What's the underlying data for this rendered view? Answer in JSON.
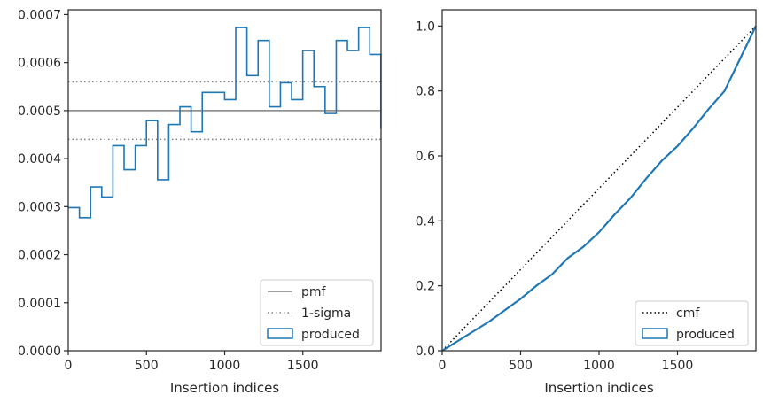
{
  "chart_data": [
    {
      "type": "step",
      "xlabel": "Insertion indices",
      "ylabel": "",
      "xlim": [
        0,
        2000
      ],
      "ylim": [
        0,
        0.00071
      ],
      "xticks": [
        0,
        500,
        1000,
        1500
      ],
      "xtick_labels": [
        "0",
        "500",
        "1000",
        "1500"
      ],
      "yticks": [
        0,
        0.0001,
        0.0002,
        0.0003,
        0.0004,
        0.0005,
        0.0006,
        0.0007
      ],
      "ytick_labels": [
        "0.0000",
        "0.0001",
        "0.0002",
        "0.0003",
        "0.0004",
        "0.0005",
        "0.0006",
        "0.0007"
      ],
      "bin_width": 71.4,
      "pmf": 0.0005,
      "sigma_band": [
        0.00044,
        0.00056
      ],
      "values": [
        0.000298,
        0.000277,
        0.000341,
        0.00032,
        0.000427,
        0.000377,
        0.000427,
        0.000479,
        0.000356,
        0.000471,
        0.000508,
        0.000456,
        0.000538,
        0.000538,
        0.000523,
        0.000673,
        0.000573,
        0.000646,
        0.000508,
        0.000558,
        0.000523,
        0.000625,
        0.00055,
        0.000494,
        0.000646,
        0.000625,
        0.000673,
        0.000617,
        0.000464
      ],
      "legend": {
        "position": "lower-right",
        "entries": [
          {
            "label": "pmf",
            "style": "solid-line",
            "color": "#808080"
          },
          {
            "label": "1-sigma",
            "style": "dotted-line",
            "color": "#808080"
          },
          {
            "label": "produced",
            "style": "patch",
            "color": "#1f77b4"
          }
        ]
      }
    },
    {
      "type": "line",
      "xlabel": "Insertion indices",
      "ylabel": "",
      "xlim": [
        0,
        2000
      ],
      "ylim": [
        0,
        1.05
      ],
      "xticks": [
        0,
        500,
        1000,
        1500
      ],
      "xtick_labels": [
        "0",
        "500",
        "1000",
        "1500"
      ],
      "yticks": [
        0,
        0.2,
        0.4,
        0.6,
        0.8,
        1.0
      ],
      "ytick_labels": [
        "0.0",
        "0.2",
        "0.4",
        "0.6",
        "0.8",
        "1.0"
      ],
      "series": [
        {
          "name": "cmf",
          "style": "dotted",
          "color": "#000000",
          "x": [
            0,
            2000
          ],
          "y": [
            0,
            1.0
          ]
        },
        {
          "name": "produced",
          "style": "solid",
          "color": "#1f77b4",
          "x": [
            0,
            100,
            200,
            300,
            400,
            500,
            600,
            700,
            800,
            900,
            1000,
            1100,
            1200,
            1300,
            1400,
            1500,
            1600,
            1700,
            1800,
            1900,
            2000
          ],
          "y": [
            0,
            0.03,
            0.06,
            0.09,
            0.125,
            0.16,
            0.2,
            0.235,
            0.285,
            0.32,
            0.365,
            0.42,
            0.47,
            0.53,
            0.585,
            0.63,
            0.685,
            0.745,
            0.8,
            0.9,
            1.0
          ]
        }
      ],
      "legend": {
        "position": "lower-right",
        "entries": [
          {
            "label": "cmf",
            "style": "dotted-line",
            "color": "#000000"
          },
          {
            "label": "produced",
            "style": "patch",
            "color": "#1f77b4"
          }
        ]
      }
    }
  ]
}
